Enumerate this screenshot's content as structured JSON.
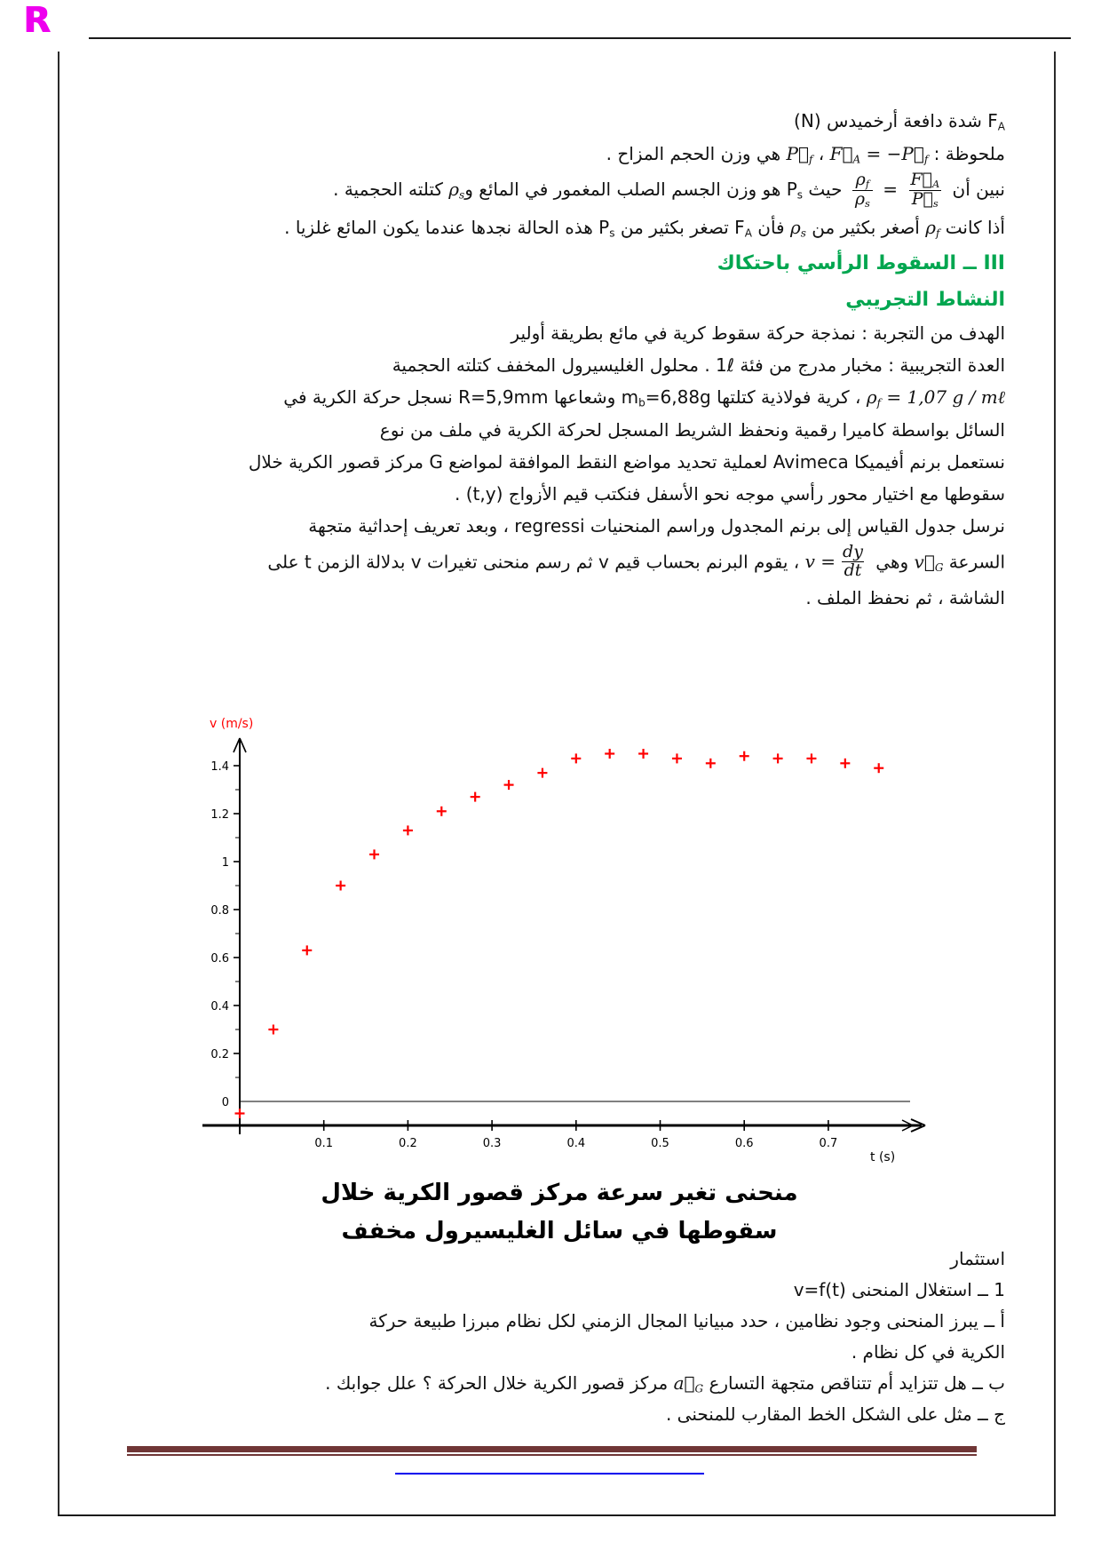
{
  "page": {
    "logo_letter": "R"
  },
  "colors": {
    "heading_green": "#00a64f",
    "logo_magenta": "#ee00ee",
    "chart_red": "#ff0000",
    "footer_maroon": "#703636",
    "link_blue": "#0000ee"
  },
  "document": {
    "top_paragraphs": [
      {
        "name": "archimedes-force-line",
        "segments": [
          {
            "t": "F"
          },
          {
            "t": "A",
            "s": "sub"
          },
          {
            "t": " شدة دافعة أرخميدس (N)"
          }
        ]
      },
      {
        "name": "note-line",
        "segments": [
          {
            "t": "ملحوظة : "
          },
          {
            "t": "P⃗",
            "s": "math"
          },
          {
            "t": "f",
            "s": "mathsub"
          },
          {
            "t": " ، "
          },
          {
            "t": "F⃗",
            "s": "math"
          },
          {
            "t": "A",
            "s": "mathsub"
          },
          {
            "t": " = −",
            "s": "math"
          },
          {
            "t": "P⃗",
            "s": "math"
          },
          {
            "t": "f",
            "s": "mathsub"
          },
          {
            "t": " هي وزن الحجم المزاح ."
          }
        ]
      },
      {
        "name": "ratio-line",
        "segments": [
          {
            "t": "نبين أن "
          },
          {
            "frac": {
              "num": [
                {
                  "t": "F⃗",
                  "s": "math"
                },
                {
                  "t": "A",
                  "s": "mathsub"
                }
              ],
              "den": [
                {
                  "t": "P⃗",
                  "s": "math"
                },
                {
                  "t": "s",
                  "s": "mathsub"
                }
              ]
            }
          },
          {
            "t": " = "
          },
          {
            "frac": {
              "num": [
                {
                  "t": "ρ",
                  "s": "math"
                },
                {
                  "t": "f",
                  "s": "mathsub"
                }
              ],
              "den": [
                {
                  "t": "ρ",
                  "s": "math"
                },
                {
                  "t": "s",
                  "s": "mathsub"
                }
              ]
            }
          },
          {
            "t": " حيث P"
          },
          {
            "t": "s",
            "s": "sub"
          },
          {
            "t": " هو وزن الجسم الصلب المغمور في المائع و"
          },
          {
            "t": "ρ",
            "s": "math"
          },
          {
            "t": "s",
            "s": "mathsub"
          },
          {
            "t": " كتلته الحجمية ."
          }
        ]
      },
      {
        "name": "gas-case-line",
        "segments": [
          {
            "t": "أذا كانت "
          },
          {
            "t": "ρ",
            "s": "math"
          },
          {
            "t": "f",
            "s": "mathsub"
          },
          {
            "t": " أصغر بكثير من "
          },
          {
            "t": "ρ",
            "s": "math"
          },
          {
            "t": "s",
            "s": "mathsub"
          },
          {
            "t": " فأن F"
          },
          {
            "t": "A",
            "s": "sub"
          },
          {
            "t": " تصغر بكثير من P"
          },
          {
            "t": "s",
            "s": "sub"
          },
          {
            "t": " هذه الحالة نجدها عندما يكون المائع غلزيا ."
          }
        ]
      },
      {
        "name": "section-heading",
        "cls": "h-green",
        "segments": [
          {
            "t": "III ــ السقوط الرأسي باحتكاك"
          }
        ]
      },
      {
        "name": "subsection-heading",
        "cls": "h-green",
        "segments": [
          {
            "t": "النشاط التجريبي"
          }
        ]
      },
      {
        "name": "goal-line",
        "segments": [
          {
            "t": "الهدف من التجربة : نمذجة حركة سقوط كرية في مائع بطريقة أولير"
          }
        ]
      },
      {
        "name": "equipment-line",
        "segments": [
          {
            "t": "العدة التجريبية : مخبار مدرج من فئة 1ℓ . محلول الغليسيرول المخفف كتلته الحجمية"
          }
        ]
      },
      {
        "name": "density-line",
        "segments": [
          {
            "t": "ρ",
            "s": "math"
          },
          {
            "t": "f",
            "s": "mathsub"
          },
          {
            "t": " = 1,07 g / mℓ",
            "s": "math"
          },
          {
            "t": " ، كرية فولاذية كتلتها m"
          },
          {
            "t": "b",
            "s": "sub"
          },
          {
            "t": "=6,88g وشعاعها R=5,9mm نسجل حركة الكرية في"
          }
        ]
      },
      {
        "name": "recording-line",
        "segments": [
          {
            "t": "السائل بواسطة كاميرا رقمية ونحفظ الشريط المسجل لحركة الكرية في ملف من نوع"
          }
        ]
      },
      {
        "name": "avimeca-line",
        "segments": [
          {
            "t": "نستعمل برنم أفيميكا Avimeca لعملية تحديد مواضع النقط الموافقة لمواضع G مركز قصور الكرية خلال"
          }
        ]
      },
      {
        "name": "axis-choice-line",
        "segments": [
          {
            "t": "سقوطها مع اختيار محور رأسي موجه نحو الأسفل فنكتب قيم الأزواج (t,y) ."
          }
        ]
      },
      {
        "name": "regressi-line",
        "segments": [
          {
            "t": "نرسل جدول القياس إلى برنم المجدول وراسم المنحنيات regressi ، وبعد تعريف إحداثية متجهة"
          }
        ]
      },
      {
        "name": "speed-line",
        "segments": [
          {
            "t": "السرعة "
          },
          {
            "t": "v⃗",
            "s": "math"
          },
          {
            "t": "G",
            "s": "mathsub"
          },
          {
            "t": " وهي "
          },
          {
            "group": [
              {
                "t": "v = ",
                "s": "math"
              },
              {
                "frac": {
                  "num": [
                    {
                      "t": "dy",
                      "s": "math"
                    }
                  ],
                  "den": [
                    {
                      "t": "dt",
                      "s": "math"
                    }
                  ]
                }
              }
            ]
          },
          {
            "t": " ، يقوم البرنم بحساب قيم v ثم رسم منحنى تغيرات v بدلالة الزمن t على"
          }
        ]
      },
      {
        "name": "screen-line",
        "segments": [
          {
            "t": "الشاشة ،  ثم نحفظ الملف ."
          }
        ]
      }
    ],
    "bottom_paragraphs": [
      {
        "name": "exploitation-heading",
        "segments": [
          {
            "t": "استثمار"
          }
        ]
      },
      {
        "name": "q1-line",
        "segments": [
          {
            "t": "1 ــ استغلال المنحنى v=f(t)"
          }
        ]
      },
      {
        "name": "qa-line",
        "segments": [
          {
            "t": "أ ــ يبرز المنحنى وجود نظامين ، حدد مبيانيا المجال الزمني لكل نظام مبرزا طبيعة حركة"
          }
        ]
      },
      {
        "name": "qa-line-2",
        "segments": [
          {
            "t": "الكرية في كل نظام ."
          }
        ]
      },
      {
        "name": "qb-line",
        "segments": [
          {
            "t": "ب ــ هل تتزايد أم تتناقص متجهة التسارع "
          },
          {
            "t": "a⃗",
            "s": "math"
          },
          {
            "t": "G",
            "s": "mathsub"
          },
          {
            "t": " مركز قصور الكرية خلال الحركة ؟ علل جوابك ."
          }
        ]
      },
      {
        "name": "qc-line",
        "segments": [
          {
            "t": "ج ــ مثل على الشكل الخط المقارب للمنحنى ."
          }
        ]
      }
    ]
  },
  "figure": {
    "ylabel": "v (m/s)",
    "xlabel": "t (s)",
    "caption_line1": "منحنى تغير سرعة مركز قصور الكرية خلال",
    "caption_line2": "سقوطها في سائل الغليسيرول مخفف"
  },
  "chart_data": {
    "type": "scatter",
    "title": "منحنى تغير سرعة مركز قصور الكرية خلال سقوطها في سائل الغليسيرول مخفف",
    "xlabel": "t (s)",
    "ylabel": "v (m/s)",
    "marker": "plus",
    "marker_color": "#ff0000",
    "grid": false,
    "legend": false,
    "xlim": [
      0,
      0.82
    ],
    "ylim": [
      -0.12,
      1.58
    ],
    "x_tick_labels": [
      "0.1",
      "0.2",
      "0.3",
      "0.4",
      "0.5",
      "0.6",
      "0.7"
    ],
    "y_tick_labels": [
      "0",
      "0.2",
      "0.4",
      "0.6",
      "0.8",
      "1",
      "1.2",
      "1.4"
    ],
    "points": [
      [
        0.0,
        -0.05
      ],
      [
        0.04,
        0.3
      ],
      [
        0.08,
        0.63
      ],
      [
        0.12,
        0.9
      ],
      [
        0.16,
        1.03
      ],
      [
        0.2,
        1.13
      ],
      [
        0.24,
        1.21
      ],
      [
        0.28,
        1.27
      ],
      [
        0.32,
        1.32
      ],
      [
        0.36,
        1.37
      ],
      [
        0.4,
        1.43
      ],
      [
        0.44,
        1.45
      ],
      [
        0.48,
        1.45
      ],
      [
        0.52,
        1.43
      ],
      [
        0.56,
        1.41
      ],
      [
        0.6,
        1.44
      ],
      [
        0.64,
        1.43
      ],
      [
        0.68,
        1.43
      ],
      [
        0.72,
        1.41
      ],
      [
        0.76,
        1.39
      ]
    ]
  }
}
